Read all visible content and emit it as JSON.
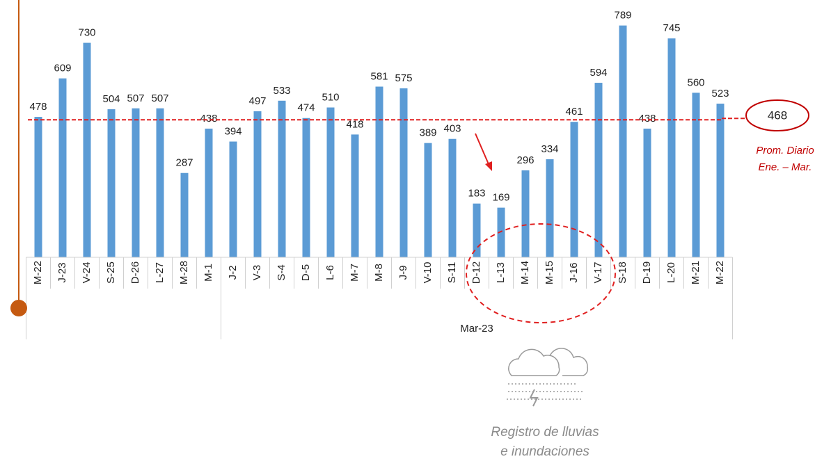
{
  "chart_data": {
    "type": "bar",
    "categories": [
      "M-22",
      "J-23",
      "V-24",
      "S-25",
      "D-26",
      "L-27",
      "M-28",
      "M-1",
      "J-2",
      "V-3",
      "S-4",
      "D-5",
      "L-6",
      "M-7",
      "M-8",
      "J-9",
      "V-10",
      "S-11",
      "D-12",
      "L-13",
      "M-14",
      "M-15",
      "J-16",
      "V-17",
      "S-18",
      "D-19",
      "L-20",
      "M-21",
      "M-22"
    ],
    "values": [
      478,
      609,
      730,
      504,
      507,
      507,
      287,
      438,
      394,
      497,
      533,
      474,
      510,
      418,
      581,
      575,
      389,
      403,
      183,
      169,
      296,
      334,
      461,
      594,
      789,
      438,
      745,
      560,
      523
    ],
    "color": "#5b9bd5",
    "ylim": [
      0,
      800
    ],
    "x_groups": [
      {
        "label": null,
        "count": 8
      },
      {
        "label": "Mar-23",
        "count": 21
      }
    ],
    "reference_line": {
      "value": 468,
      "label": "468",
      "color": "#e02020",
      "note": [
        "Prom. Diario",
        "Ene. – Mar."
      ]
    },
    "annotation": [
      "Registro de lluvias",
      "e inundaciones"
    ]
  }
}
